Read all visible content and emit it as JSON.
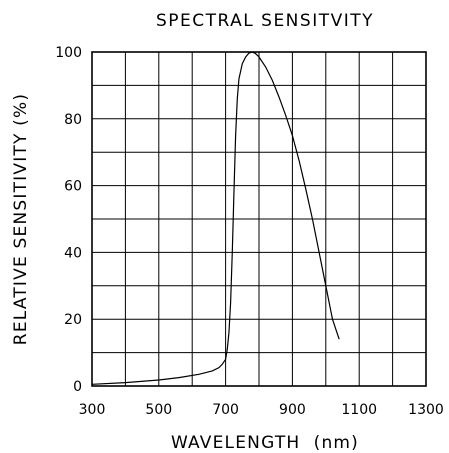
{
  "chart_data": {
    "type": "line",
    "title": "SPECTRAL SENSITVITY",
    "xlabel": "WAVELENGTH  (nm)",
    "ylabel": "RELATIVE SENSITIVITY (%)",
    "xlim": [
      300,
      1300
    ],
    "ylim": [
      0,
      100
    ],
    "xticks": [
      "300",
      "500",
      "700",
      "900",
      "1100",
      "1300"
    ],
    "yticks": [
      "0",
      "20",
      "40",
      "60",
      "80",
      "100"
    ],
    "grid": true,
    "grid_x_step": 100,
    "grid_y_step": 10,
    "series": [
      {
        "x": [
          300,
          400,
          500,
          560,
          620,
          660,
          680,
          690,
          700,
          705,
          710,
          715,
          720,
          725,
          730,
          735,
          740,
          750,
          760,
          770,
          780,
          790,
          800,
          820,
          840,
          860,
          880,
          900,
          920,
          940,
          960,
          980,
          1000,
          1020,
          1040
        ],
        "y": [
          0.5,
          1,
          1.8,
          2.5,
          3.5,
          4.5,
          5.5,
          6.5,
          8,
          11,
          16,
          25,
          40,
          58,
          75,
          86,
          92,
          96.5,
          98.5,
          99.7,
          100,
          99.5,
          98.5,
          95.5,
          91.5,
          86.5,
          81,
          75,
          67.5,
          59,
          50,
          40,
          30,
          20,
          14
        ]
      }
    ]
  }
}
